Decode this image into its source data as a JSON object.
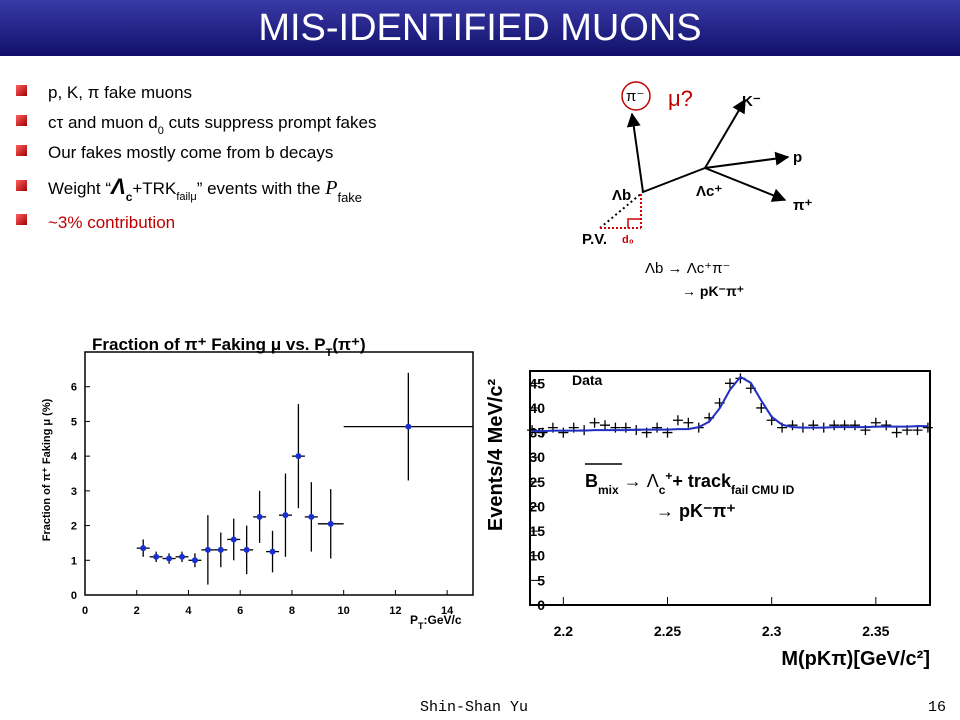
{
  "title": "MIS-IDENTIFIED MUONS",
  "bullets": [
    [
      "p, K, π fake muons"
    ],
    [
      "cτ and muon d",
      "0",
      " cuts suppress prompt fakes"
    ],
    [
      "Our fakes mostly come from b decays"
    ],
    [
      "Weight “",
      "Λ",
      "c",
      "+TRK",
      "failμ",
      "” events with the ",
      "P",
      "fake"
    ],
    [
      "~3% contribution"
    ]
  ],
  "diagram": {
    "pi_minus": "π⁻",
    "mu": "μ?",
    "k_minus": "K⁻",
    "p": "p",
    "pi_plus": "π⁺",
    "lambda_b": "Λb",
    "lambda_c": "Λc⁺",
    "pv": "P.V.",
    "d0": "d₀",
    "decay_1": "Λb → Λc⁺π⁻",
    "decay_2": "→ pK⁻π⁺"
  },
  "chart_data": [
    {
      "type": "scatter",
      "title": [
        "Fraction of π⁺ Faking μ vs. P",
        "T",
        "(π⁺)"
      ],
      "x_label": [
        "P",
        "T",
        ":GeV/c"
      ],
      "y_label": "Fraction of π⁺ Faking μ (%)",
      "x": [
        2.25,
        2.75,
        3.25,
        3.75,
        4.25,
        4.75,
        5.25,
        5.75,
        6.25,
        6.75,
        7.25,
        7.75,
        8.25,
        8.75,
        9.5,
        12.5
      ],
      "xerr": [
        0.25,
        0.25,
        0.25,
        0.25,
        0.25,
        0.25,
        0.25,
        0.25,
        0.25,
        0.25,
        0.25,
        0.25,
        0.25,
        0.25,
        0.5,
        2.5
      ],
      "series": [
        {
          "color": "#1a2fd0",
          "marker": "circle",
          "values": [
            1.35,
            1.1,
            1.05,
            1.1,
            1.0,
            1.3,
            1.3,
            1.6,
            1.3,
            2.25,
            1.25,
            2.3,
            4.0,
            2.25,
            2.05,
            4.85
          ],
          "yerr": [
            0.25,
            0.15,
            0.15,
            0.15,
            0.2,
            1.0,
            0.5,
            0.6,
            0.7,
            0.75,
            0.6,
            1.2,
            1.5,
            1.0,
            1.0,
            1.55
          ]
        }
      ],
      "xlim": [
        0,
        15
      ],
      "ylim": [
        0,
        7
      ],
      "xticks": [
        0,
        2,
        4,
        6,
        8,
        10,
        12,
        14
      ],
      "yticks": [
        0,
        1,
        2,
        3,
        4,
        5,
        6
      ]
    },
    {
      "type": "scatter",
      "y_label": "Events/4 MeV/c²",
      "x_label": "M(pKπ)[GeV/c²]",
      "annotation_1": [
        "B",
        "mix",
        " → Λ",
        "c",
        "+",
        "+ track",
        "fail CMU ID"
      ],
      "annotation_2": "→ pK⁻π⁺",
      "x": [
        2.185,
        2.19,
        2.195,
        2.2,
        2.205,
        2.21,
        2.215,
        2.22,
        2.225,
        2.23,
        2.235,
        2.24,
        2.245,
        2.25,
        2.255,
        2.26,
        2.265,
        2.27,
        2.275,
        2.28,
        2.285,
        2.29,
        2.295,
        2.3,
        2.305,
        2.31,
        2.315,
        2.32,
        2.325,
        2.33,
        2.335,
        2.34,
        2.345,
        2.35,
        2.355,
        2.36,
        2.365,
        2.37,
        2.375
      ],
      "series": [
        {
          "name": "Data",
          "color": "#000000",
          "marker": "plus",
          "values": [
            35.5,
            35,
            36,
            35,
            36,
            35.5,
            37,
            36.5,
            36,
            36,
            35.5,
            35,
            36,
            35,
            37.5,
            37,
            36,
            38,
            41,
            45,
            46,
            44,
            40,
            37.5,
            36,
            36.5,
            36,
            36.5,
            36,
            36.5,
            36.5,
            36.5,
            35.5,
            37,
            36.5,
            35,
            35.5,
            35.5,
            36
          ]
        },
        {
          "color": "#1f2fbf",
          "line": true,
          "values": [
            35.3,
            35.3,
            35.4,
            35.4,
            35.4,
            35.4,
            35.5,
            35.5,
            35.5,
            35.5,
            35.6,
            35.6,
            35.6,
            35.6,
            35.7,
            35.7,
            36.1,
            37.2,
            39.9,
            43.7,
            46.3,
            45.1,
            41.5,
            38.2,
            36.6,
            36.1,
            36.0,
            36.0,
            36.0,
            36.1,
            36.1,
            36.1,
            36.1,
            36.2,
            36.2,
            36.2,
            36.2,
            36.3,
            36.3
          ]
        }
      ],
      "xlim": [
        2.184,
        2.376
      ],
      "ylim": [
        0,
        47.5
      ],
      "xticks": [
        2.2,
        2.25,
        2.3,
        2.35
      ],
      "yticks": [
        0,
        5,
        10,
        15,
        20,
        25,
        30,
        35,
        40,
        45
      ]
    }
  ],
  "footer": {
    "author": "Shin-Shan Yu",
    "page": "16"
  }
}
